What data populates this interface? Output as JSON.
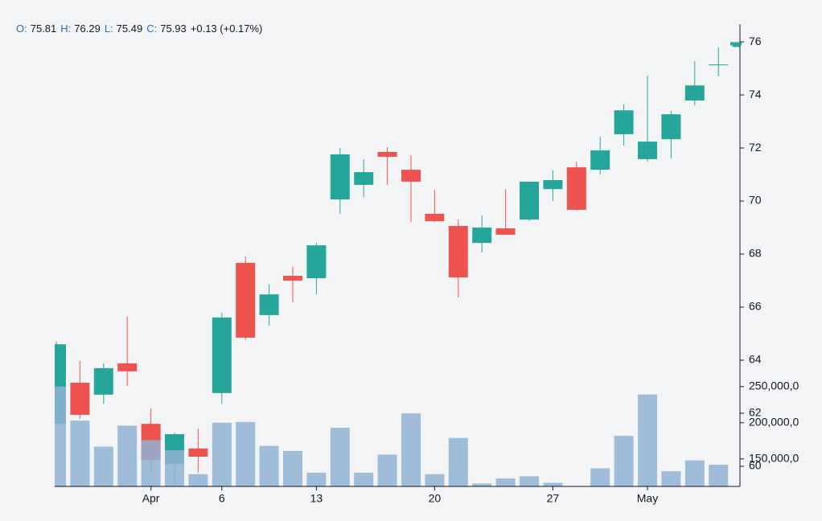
{
  "chart_data": {
    "type": "candlestick",
    "legend": {
      "labels": [
        "O:",
        "H:",
        "L:",
        "C:"
      ],
      "values": [
        75.81,
        76.29,
        75.49,
        75.93
      ],
      "change": "+0.13 (+0.17%)"
    },
    "categories": [
      null,
      null,
      null,
      null,
      "Apr",
      null,
      null,
      "6",
      null,
      null,
      null,
      "13",
      null,
      null,
      null,
      null,
      "20",
      null,
      null,
      null,
      null,
      "27",
      null,
      null,
      null,
      "May",
      null,
      null,
      null,
      null
    ],
    "open": [
      61.6,
      63.15,
      62.7,
      63.88,
      61.6,
      60.09,
      60.67,
      62.76,
      67.67,
      65.7,
      67.18,
      67.09,
      70.06,
      70.61,
      71.85,
      71.18,
      69.52,
      69.06,
      68.42,
      68.97,
      69.3,
      70.45,
      71.27,
      71.18,
      72.52,
      71.58,
      72.33,
      73.79,
      75.15,
      75.81
    ],
    "high": [
      64.7,
      63.97,
      63.88,
      65.64,
      62.18,
      61.27,
      61.42,
      65.79,
      67.91,
      66.85,
      67.52,
      68.42,
      72.0,
      71.58,
      72.03,
      71.73,
      70.42,
      69.3,
      69.45,
      70.45,
      70.73,
      71.15,
      71.48,
      72.42,
      73.64,
      74.73,
      73.39,
      75.27,
      75.79,
      76.29
    ],
    "low": [
      61.6,
      61.79,
      62.36,
      63.03,
      59.79,
      59.3,
      59.76,
      62.36,
      64.76,
      65.3,
      66.18,
      66.48,
      69.52,
      70.15,
      70.61,
      69.21,
      69.21,
      66.36,
      68.06,
      68.73,
      69.24,
      70.0,
      69.64,
      71.0,
      72.09,
      71.48,
      71.61,
      73.61,
      74.7,
      75.49
    ],
    "close": [
      64.6,
      61.94,
      63.7,
      63.58,
      60.24,
      61.21,
      60.36,
      65.61,
      64.85,
      66.48,
      67.0,
      68.33,
      71.76,
      71.09,
      71.67,
      70.73,
      69.24,
      67.12,
      69.0,
      68.73,
      70.73,
      70.79,
      69.67,
      71.91,
      73.42,
      72.24,
      73.27,
      74.36,
      75.15,
      75.93
    ],
    "volume": [
      250000000,
      203000000,
      167000000,
      196000000,
      176000000,
      162000000,
      129000000,
      200000000,
      201000000,
      168000000,
      161000000,
      131000000,
      193000000,
      131000000,
      156000000,
      213000000,
      129000000,
      179000000,
      116000000,
      123000000,
      126000000,
      117000000,
      112000000,
      137000000,
      182000000,
      239000000,
      133000000,
      148000000,
      142000000,
      112000000
    ],
    "up_color": "#26a69a",
    "down_color": "#ef5350",
    "volume_color": "#8fb3d4",
    "ylim": [
      59.24,
      76.67
    ],
    "yticks": [
      60,
      62,
      64,
      66,
      68,
      70,
      72,
      74,
      76
    ],
    "y2lim": [
      112000000,
      751000000
    ],
    "y2ticks": [
      {
        "value": 150000000,
        "label": "150,000,0"
      },
      {
        "value": 200000000,
        "label": "200,000,0"
      },
      {
        "value": 250000000,
        "label": "250,000,0"
      }
    ]
  }
}
